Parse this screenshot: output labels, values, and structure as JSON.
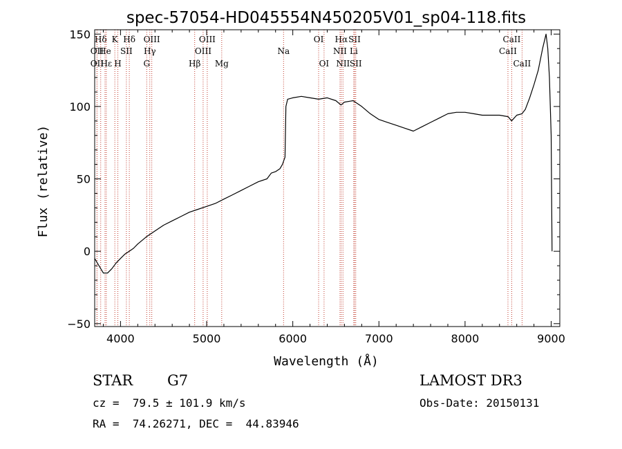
{
  "chart_data": {
    "type": "line",
    "title": "spec-57054-HD045554N450205V01_sp04-118.fits",
    "xlabel": "Wavelength (Å)",
    "ylabel": "Flux (relative)",
    "xlim": [
      3700,
      9100
    ],
    "ylim": [
      -52,
      153
    ],
    "x_ticks": [
      4000,
      5000,
      6000,
      7000,
      8000,
      9000
    ],
    "y_ticks": [
      -50,
      0,
      50,
      100,
      150
    ],
    "x_tick_labels": [
      "4000",
      "5000",
      "6000",
      "7000",
      "8000",
      "9000"
    ],
    "y_tick_labels": [
      "−50",
      "0",
      "50",
      "100",
      "150"
    ],
    "series": [
      {
        "name": "flux",
        "x": [
          3700,
          3750,
          3800,
          3850,
          3900,
          3950,
          4000,
          4050,
          4100,
          4150,
          4200,
          4300,
          4400,
          4500,
          4600,
          4700,
          4800,
          4900,
          5000,
          5100,
          5200,
          5300,
          5400,
          5500,
          5600,
          5700,
          5750,
          5800,
          5850,
          5880,
          5910,
          5920,
          5940,
          6000,
          6100,
          6200,
          6300,
          6400,
          6500,
          6560,
          6600,
          6700,
          6800,
          6900,
          7000,
          7100,
          7200,
          7300,
          7400,
          7500,
          7600,
          7700,
          7800,
          7900,
          8000,
          8100,
          8200,
          8300,
          8400,
          8500,
          8540,
          8600,
          8660,
          8700,
          8750,
          8800,
          8850,
          8900,
          8940,
          8960,
          8980,
          9000,
          9010
        ],
        "y": [
          -5,
          -10,
          -15,
          -15,
          -12,
          -8,
          -5,
          -2,
          0,
          2,
          5,
          10,
          14,
          18,
          21,
          24,
          27,
          29,
          31,
          33,
          36,
          39,
          42,
          45,
          48,
          50,
          54,
          55,
          57,
          60,
          65,
          100,
          105,
          106,
          107,
          106,
          105,
          106,
          104,
          101,
          103,
          104,
          100,
          95,
          91,
          89,
          87,
          85,
          83,
          86,
          89,
          92,
          95,
          96,
          96,
          95,
          94,
          94,
          94,
          93,
          90,
          94,
          95,
          98,
          106,
          115,
          125,
          140,
          150,
          140,
          120,
          80,
          0
        ]
      }
    ],
    "line_markers": [
      {
        "label": "Hδ",
        "x": 3770,
        "row": 0
      },
      {
        "label": "K",
        "x": 3934,
        "row": 0
      },
      {
        "label": "Hδ",
        "x": 4102,
        "row": 0
      },
      {
        "label": "OIII",
        "x": 4363,
        "row": 0
      },
      {
        "label": "OIII",
        "x": 5007,
        "row": 0
      },
      {
        "label": "OI",
        "x": 6300,
        "row": 0
      },
      {
        "label": "Hα",
        "x": 6563,
        "row": 0
      },
      {
        "label": "SII",
        "x": 6717,
        "row": 0
      },
      {
        "label": "CaII",
        "x": 8542,
        "row": 0
      },
      {
        "label": "OII",
        "x": 3727,
        "row": 1
      },
      {
        "label": "He",
        "x": 3820,
        "row": 1
      },
      {
        "label": "SII",
        "x": 4068,
        "row": 1
      },
      {
        "label": "Hγ",
        "x": 4340,
        "row": 1
      },
      {
        "label": "OIII",
        "x": 4959,
        "row": 1
      },
      {
        "label": "Na",
        "x": 5893,
        "row": 1
      },
      {
        "label": "NII",
        "x": 6548,
        "row": 1
      },
      {
        "label": "Li",
        "x": 6708,
        "row": 1
      },
      {
        "label": "CaII",
        "x": 8498,
        "row": 1
      },
      {
        "label": "OII",
        "x": 3727,
        "row": 2
      },
      {
        "label": "Hε",
        "x": 3835,
        "row": 2
      },
      {
        "label": "H",
        "x": 3969,
        "row": 2
      },
      {
        "label": "G",
        "x": 4304,
        "row": 2
      },
      {
        "label": "Hβ",
        "x": 4861,
        "row": 2
      },
      {
        "label": "Mg",
        "x": 5175,
        "row": 2
      },
      {
        "label": "OI",
        "x": 6363,
        "row": 2
      },
      {
        "label": "NII",
        "x": 6583,
        "row": 2
      },
      {
        "label": "SII",
        "x": 6731,
        "row": 2
      },
      {
        "label": "CaII",
        "x": 8662,
        "row": 2
      }
    ]
  },
  "info": {
    "object_class": "STAR",
    "subclass": "G7",
    "survey": "LAMOST DR3",
    "redshift": "cz =  79.5 ± 101.9 km/s",
    "obs_date": "Obs-Date: 20150131",
    "coords": "RA =  74.26271, DEC =  44.83946"
  },
  "colors": {
    "line": "#000000",
    "marker": "#c0392b",
    "text": "#000000"
  }
}
